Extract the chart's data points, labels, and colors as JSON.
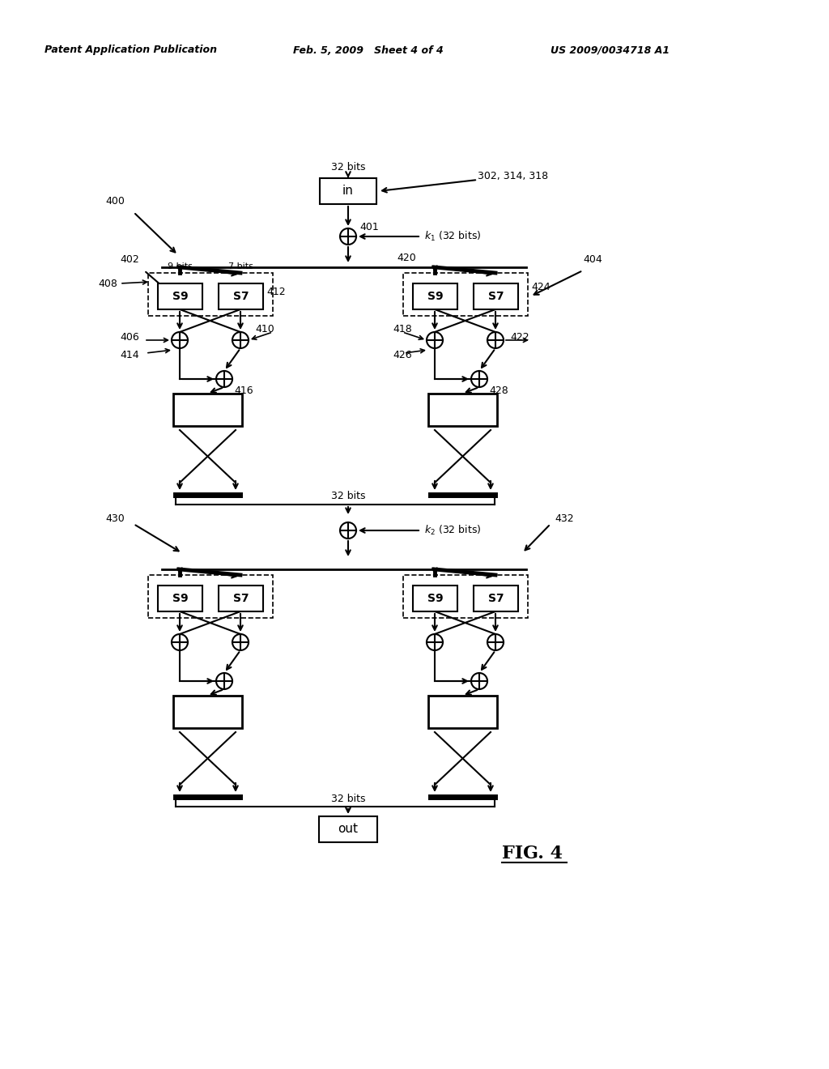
{
  "bg_color": "#ffffff",
  "header_left": "Patent Application Publication",
  "header_mid": "Feb. 5, 2009   Sheet 4 of 4",
  "header_right": "US 2009/0034718 A1",
  "fig_label": "FIG. 4"
}
